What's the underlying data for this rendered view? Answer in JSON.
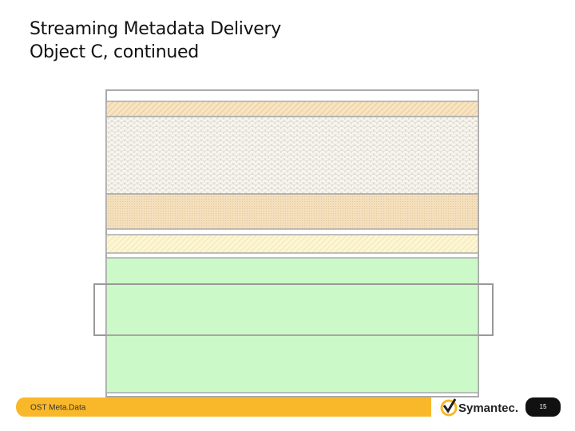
{
  "header": {
    "title_lines": [
      "Streaming Metadata Delivery",
      "Object C, continued"
    ]
  },
  "footer": {
    "label": "OST Meta.Data",
    "logo": "Symantec.",
    "page_number": "15"
  }
}
